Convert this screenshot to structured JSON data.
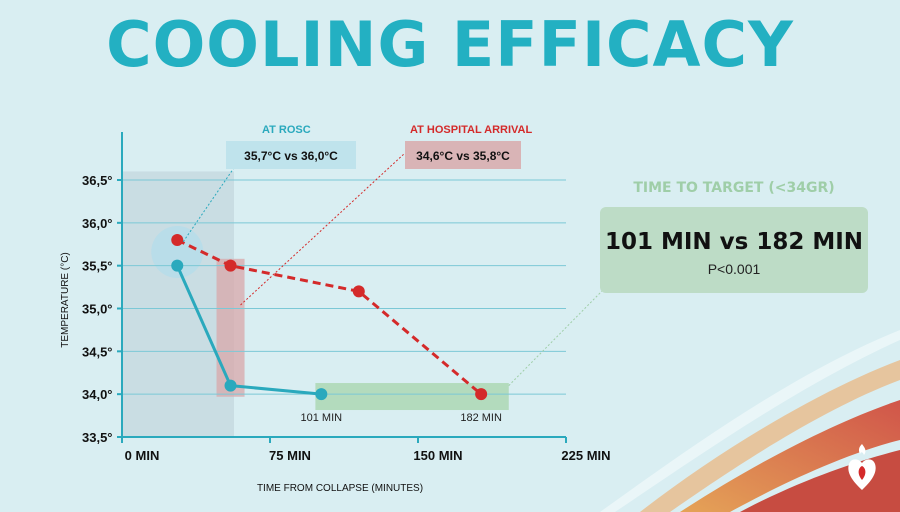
{
  "title": "COOLING EFFICACY",
  "chart_data": {
    "type": "line",
    "xlabel": "TIME FROM COLLAPSE (MINUTES)",
    "ylabel": "TEMPERATURE (°C)",
    "x_ticks": [
      {
        "value": 0,
        "label": "0 MIN"
      },
      {
        "value": 75,
        "label": "75  MIN"
      },
      {
        "value": 150,
        "label": "150 MIN"
      },
      {
        "value": 225,
        "label": "225 MIN"
      }
    ],
    "y_ticks": [
      {
        "value": 33.5,
        "label": "33,5°"
      },
      {
        "value": 34.0,
        "label": "34,0°"
      },
      {
        "value": 34.5,
        "label": "34,5°"
      },
      {
        "value": 35.0,
        "label": "35,0°"
      },
      {
        "value": 35.5,
        "label": "35,5°"
      },
      {
        "value": 36.0,
        "label": "36,0°"
      },
      {
        "value": 36.5,
        "label": "36,5°"
      }
    ],
    "xlim": [
      0,
      225
    ],
    "ylim": [
      33.5,
      37.0
    ],
    "grid": true,
    "series": [
      {
        "color": "#2aa9bd",
        "style": "solid",
        "points": [
          [
            28,
            35.5
          ],
          [
            55,
            34.1
          ],
          [
            101,
            34.0
          ]
        ]
      },
      {
        "color": "#d42a2a",
        "style": "dashed",
        "points": [
          [
            28,
            35.8
          ],
          [
            55,
            35.5
          ],
          [
            120,
            35.2
          ],
          [
            182,
            34.0
          ]
        ]
      }
    ],
    "point_labels": [
      {
        "x": 101,
        "y": 34.0,
        "text": "101 MIN"
      },
      {
        "x": 182,
        "y": 34.0,
        "text": "182 MIN"
      }
    ],
    "annotations": {
      "rosc_label": "AT ROSC",
      "rosc_value": "35,7°C vs 36,0°C",
      "hospital_label": "AT HOSPITAL ARRIVAL",
      "hospital_value": "34,6°C vs 35,8°C"
    }
  },
  "time_to_target": {
    "label": "TIME TO TARGET (<34GR)",
    "value": "101 MIN vs 182 MIN",
    "p_value": "P<0.001"
  },
  "colors": {
    "background": "#d9eef2",
    "title": "#23b0c2",
    "cool_line": "#2aa9bd",
    "control_line": "#d42a2a",
    "target_box": "#bddcc6",
    "rosc_label": "#2aa9bd",
    "hospital_label": "#d42a2a"
  },
  "icons": {
    "corner": "heart-torch-icon"
  }
}
